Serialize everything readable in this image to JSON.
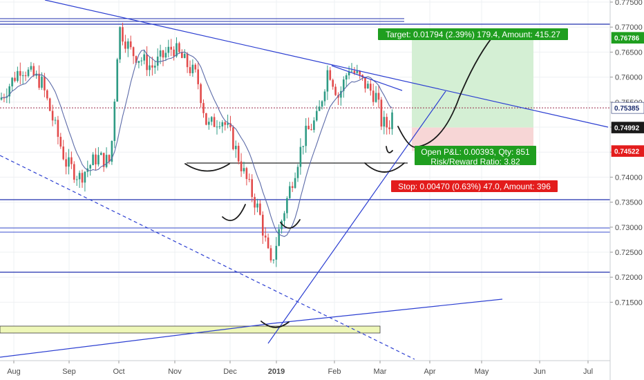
{
  "chart_data": {
    "type": "candlestick",
    "ylim": [
      0.7145,
      0.7755
    ],
    "y_ticks": [
      {
        "value": 0.775,
        "label": "0.77500"
      },
      {
        "value": 0.77,
        "label": "0.77000"
      },
      {
        "value": 0.765,
        "label": "0.76500"
      },
      {
        "value": 0.76,
        "label": "0.76000"
      },
      {
        "value": 0.755,
        "label": "0.75500"
      },
      {
        "value": 0.75,
        "label": "0.75000"
      },
      {
        "value": 0.745,
        "label": "0.74500"
      },
      {
        "value": 0.74,
        "label": "0.74000"
      },
      {
        "value": 0.735,
        "label": "0.73500"
      },
      {
        "value": 0.73,
        "label": "0.73000"
      },
      {
        "value": 0.725,
        "label": "0.72500"
      },
      {
        "value": 0.72,
        "label": "0.72000"
      },
      {
        "value": 0.715,
        "label": "0.71500"
      }
    ],
    "x_labels": [
      "Aug",
      "Sep",
      "Oct",
      "Nov",
      "Dec",
      "2019",
      "Feb",
      "Mar",
      "Apr",
      "May",
      "Jun",
      "Jul"
    ],
    "price_badges": [
      {
        "label": "0.76786",
        "value": 0.76786,
        "bg": "#1f9e1f",
        "fg": "#ffffff"
      },
      {
        "label": "0.75385",
        "value": 0.75385,
        "bg": "#ffffff",
        "fg": "#1a2b6d"
      },
      {
        "label": "0.74992",
        "value": 0.74992,
        "bg": "#1a1a1a",
        "fg": "#ffffff"
      },
      {
        "label": "0.74522",
        "value": 0.74522,
        "bg": "#e31c1c",
        "fg": "#ffffff"
      }
    ],
    "position": {
      "entry": 0.74992,
      "target_price": 0.76786,
      "stop_price": 0.74522,
      "target_text": "Target: 0.01794 (2.39%) 179.4, Amount: 415.27",
      "open_text": "Open P&L: 0.00393, Qty: 851",
      "rr_text": "Risk/Reward Ratio: 3.82",
      "stop_text": "Stop: 0.00470 (0.63%) 47.0, Amount: 396"
    },
    "current_price": 0.75385,
    "colors": {
      "bull": "#2e9b84",
      "bear": "#e24b4b",
      "ma": "#5b6aa8",
      "trend": "#2b3ed1",
      "hline": "#1f2fae",
      "profit_zone": "#d4efd4",
      "loss_zone": "#f7d6d6",
      "support_box": "#eef7b8"
    },
    "series": [
      {
        "name": "",
        "x": [
          "Aug",
          "Sep",
          "Oct",
          "Nov",
          "Dec",
          "2019",
          "Feb",
          "Mar"
        ],
        "values": [
          0.758,
          0.742,
          0.768,
          0.759,
          0.743,
          0.722,
          0.758,
          0.7538
        ]
      }
    ]
  }
}
